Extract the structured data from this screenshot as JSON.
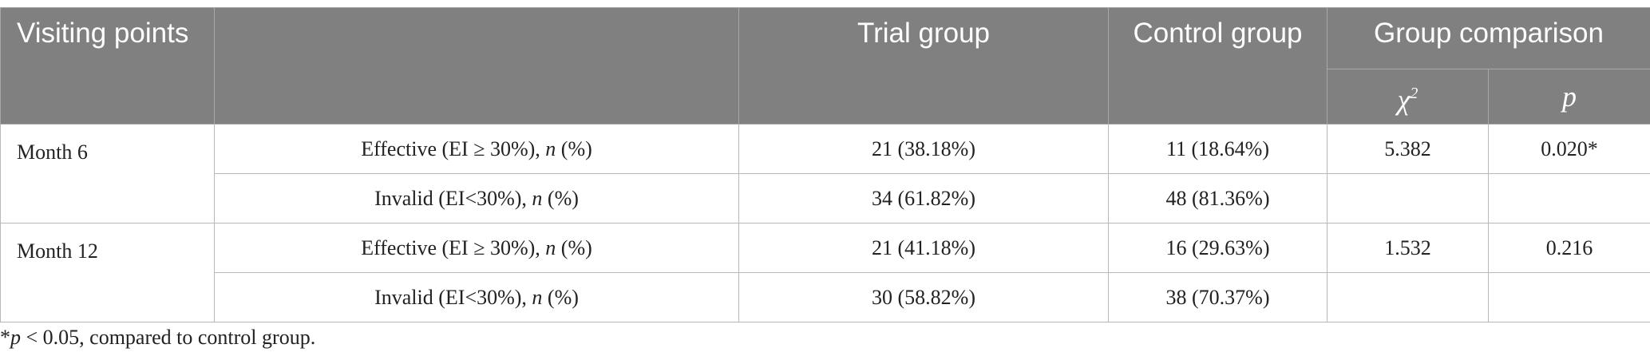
{
  "table": {
    "headers": {
      "visiting_points": "Visiting points",
      "trial_group": "Trial group",
      "control_group": "Control group",
      "group_comparison": "Group comparison",
      "chi_square": "χ",
      "chi_square_sup": "2",
      "p": "p"
    },
    "rows": [
      {
        "visit": "Month 6",
        "outcome": "Effective (EI ≥ 30%), n (%)",
        "trial": "21 (38.18%)",
        "control": "11 (18.64%)",
        "chi2": "5.382",
        "p": "0.020*"
      },
      {
        "visit": "",
        "outcome": "Invalid (EI<30%), n (%)",
        "trial": "34 (61.82%)",
        "control": "48 (81.36%)",
        "chi2": "",
        "p": ""
      },
      {
        "visit": "Month 12",
        "outcome": "Effective (EI ≥ 30%), n (%)",
        "trial": "21 (41.18%)",
        "control": "16 (29.63%)",
        "chi2": "1.532",
        "p": "0.216"
      },
      {
        "visit": "",
        "outcome": "Invalid (EI<30%), n (%)",
        "trial": "30 (58.82%)",
        "control": "38 (70.37%)",
        "chi2": "",
        "p": ""
      }
    ],
    "outcome_parts": {
      "effective_prefix": "Effective (EI ≥ 30%), ",
      "invalid_prefix": "Invalid (EI<30%), ",
      "n": "n",
      "pct": " (%)"
    }
  },
  "footnote": {
    "star": "*",
    "p": "p",
    "text": " < 0.05, compared to control group."
  }
}
